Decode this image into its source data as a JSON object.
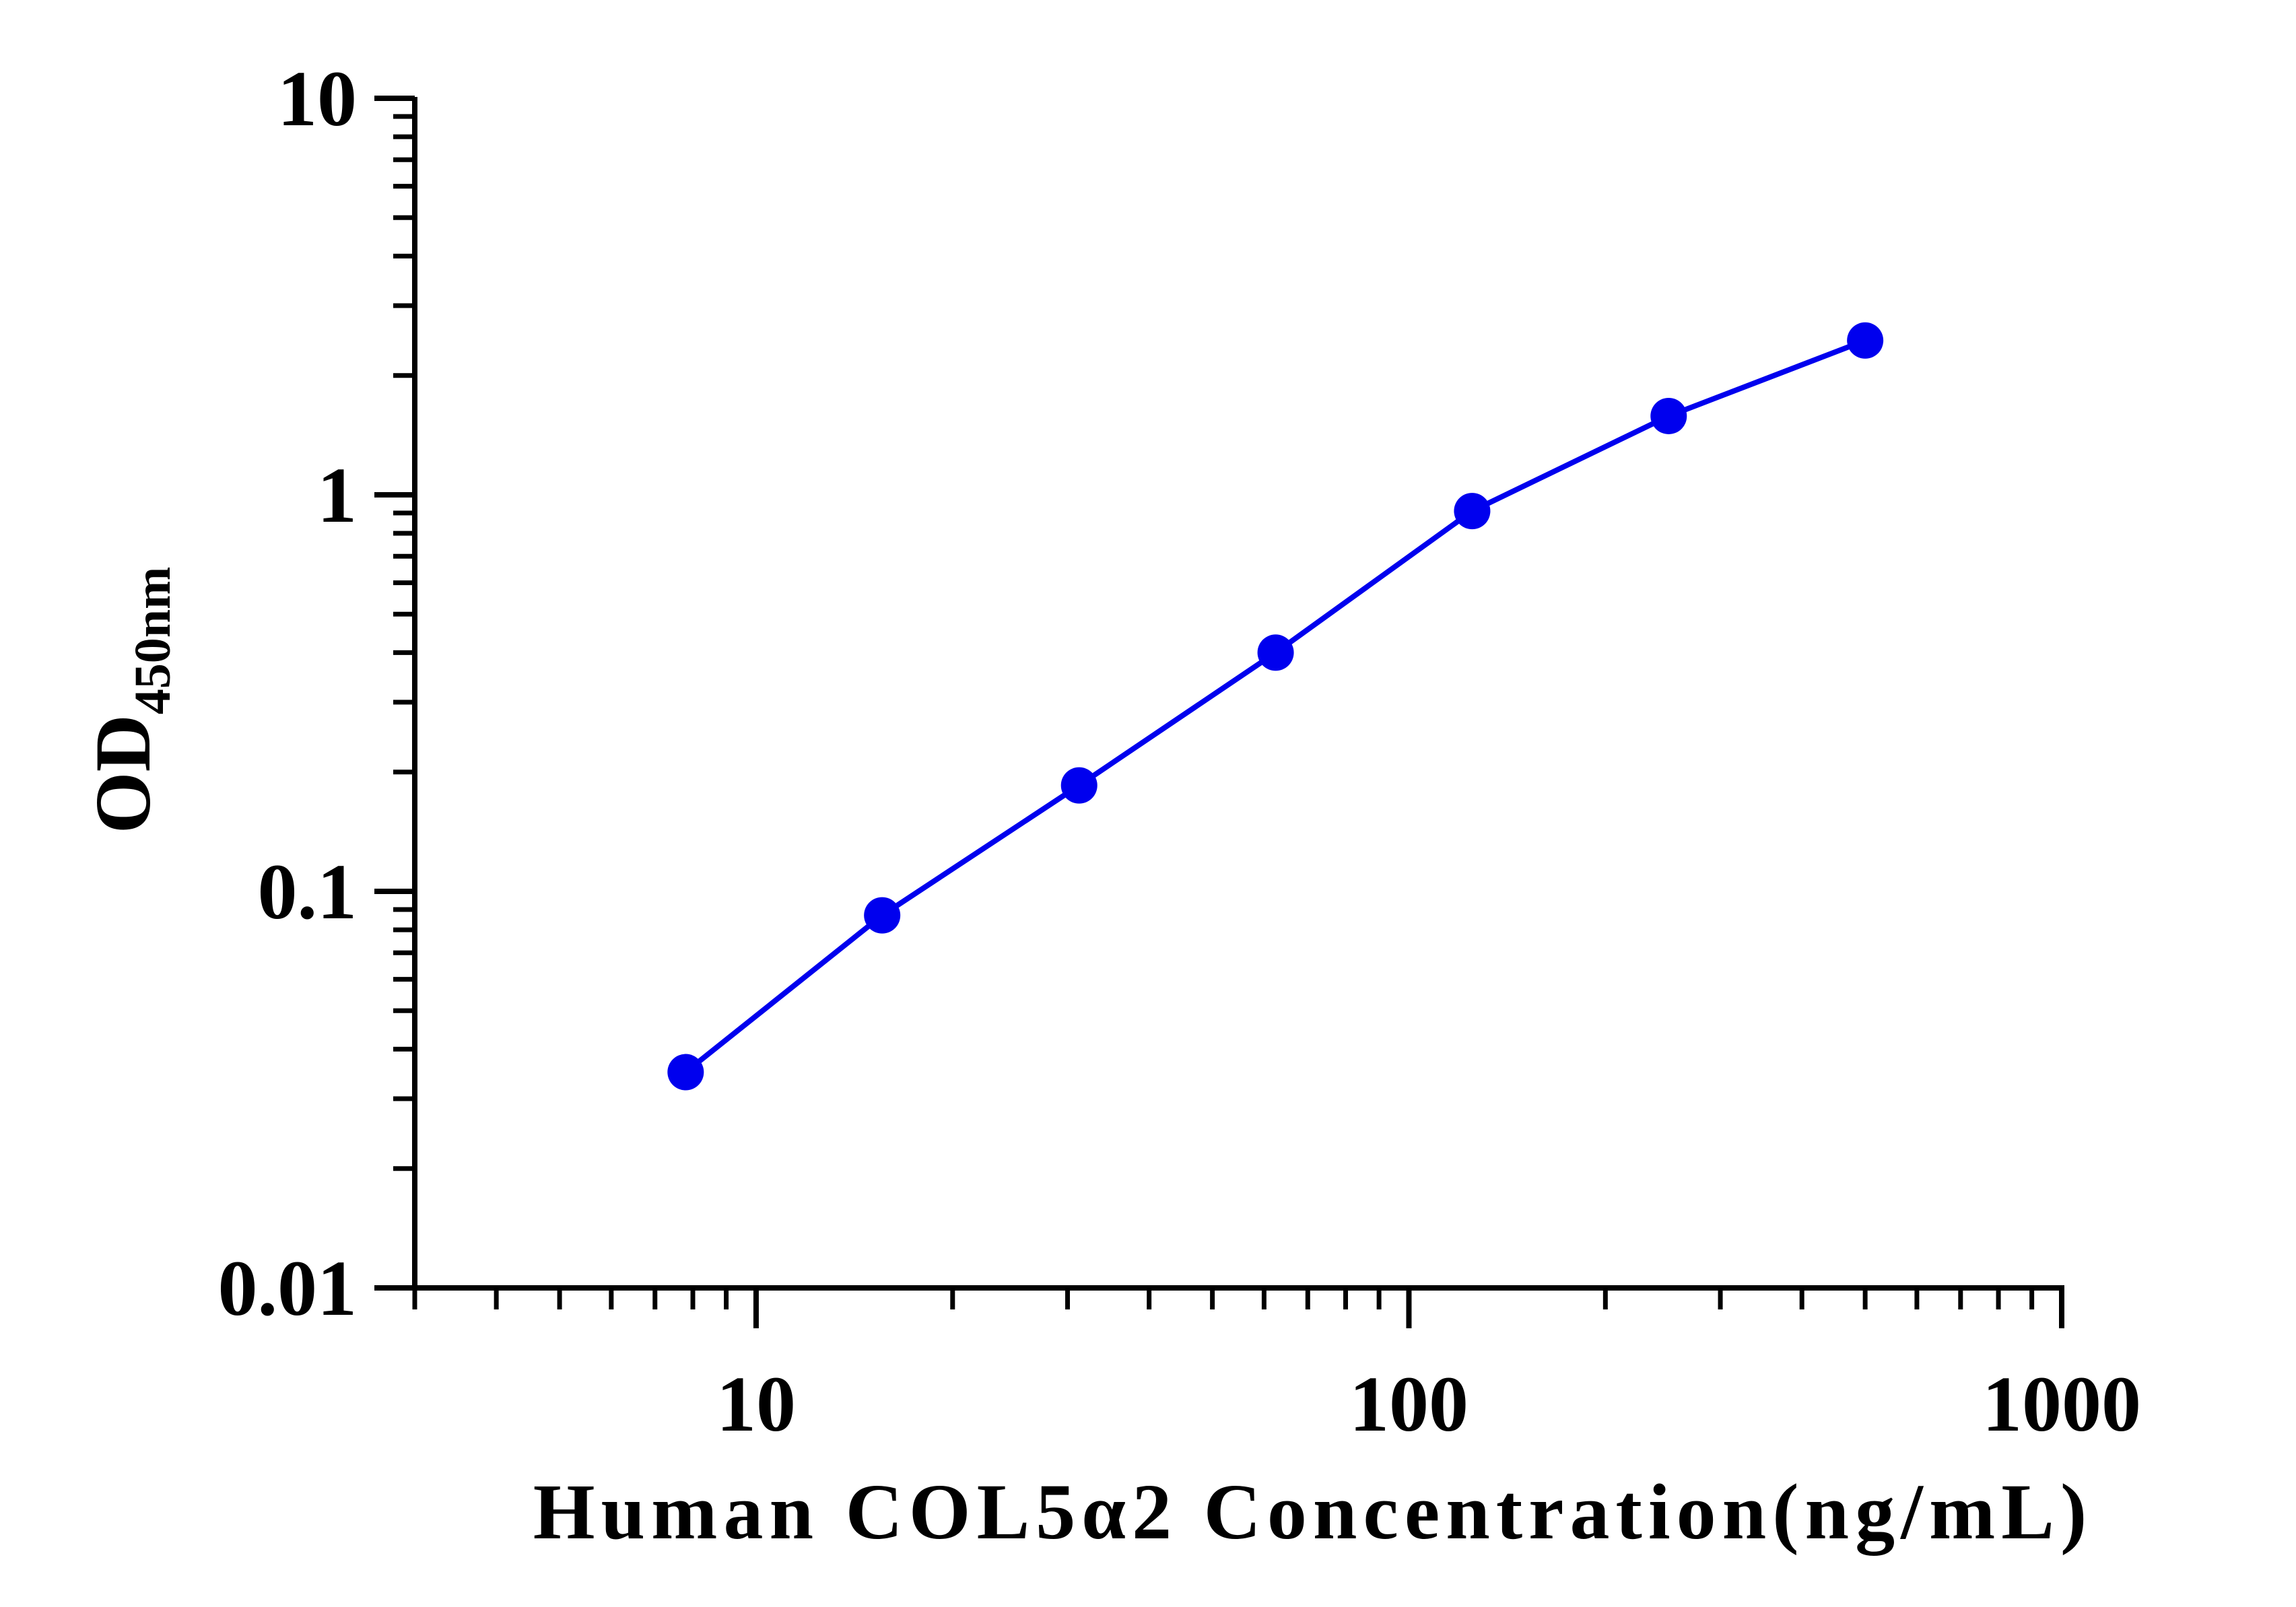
{
  "chart_data": {
    "type": "line",
    "xlabel": "Human COL5α2 Concentration(ng/mL)",
    "ylabel_main": "OD",
    "ylabel_sub": "450nm",
    "x_scale": "log",
    "y_scale": "log",
    "xlim": [
      3,
      1000
    ],
    "ylim": [
      0.01,
      10
    ],
    "x_tick_labels": [
      "10",
      "100",
      "1000"
    ],
    "y_tick_labels": [
      "0.01",
      "0.1",
      "1",
      "10"
    ],
    "grid": false,
    "legend": "none",
    "series": [
      {
        "color": "#0000ee",
        "x": [
          7.8,
          15.6,
          31.25,
          62.5,
          125,
          250,
          500
        ],
        "y": [
          0.035,
          0.087,
          0.185,
          0.4,
          0.91,
          1.58,
          2.45
        ]
      }
    ]
  }
}
